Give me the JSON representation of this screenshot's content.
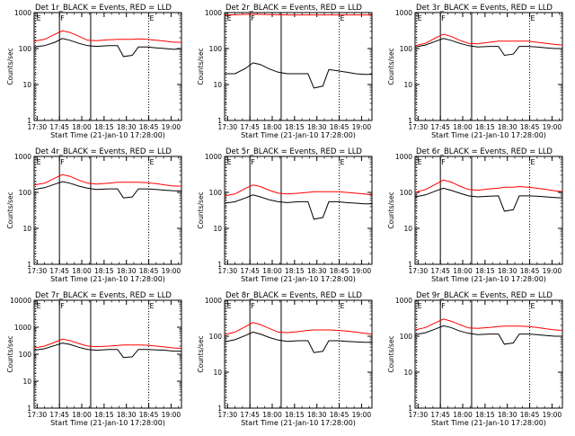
{
  "page": {
    "xlabel": "Start Time (21-Jan-10 17:28:00)",
    "ylabel": "Counts/sec",
    "x_tick_labels": [
      "17:30",
      "17:45",
      "18:00",
      "18:15",
      "18:30",
      "18:45",
      "19:00"
    ],
    "y_tick_labels": [
      "1",
      "10",
      "100",
      "1000"
    ],
    "y_tick_labels_top": [
      "1",
      "10",
      "100",
      "1000",
      "10000"
    ],
    "markers": [
      "E",
      "F",
      "E"
    ],
    "colors": {
      "black_series": "#000000",
      "red_series": "#ff0000",
      "axes": "#000000",
      "background": "#ffffff"
    }
  },
  "chart_data": [
    {
      "type": "line",
      "title": "Det 1r_BLACK = Events, RED = LLD",
      "xlabel": "Start Time (21-Jan-10 17:28:00)",
      "ylabel": "Counts/sec",
      "x_units": "time (HH:MM, 21-Jan-10)",
      "xlim": [
        "17:28",
        "19:07"
      ],
      "ylim": [
        1,
        1000
      ],
      "yscale": "log",
      "vlines_solid": [
        "17:45",
        "18:06"
      ],
      "vlines_dotted": [
        "17:29",
        "18:45",
        "19:07"
      ],
      "x": [
        "17:28",
        "17:35",
        "17:42",
        "17:47",
        "17:52",
        "17:58",
        "18:04",
        "18:10",
        "18:18",
        "18:24",
        "18:28",
        "18:34",
        "18:38",
        "18:44",
        "18:50",
        "18:56",
        "19:02",
        "19:07"
      ],
      "series": [
        {
          "name": "BLACK = Events",
          "color": "#000000",
          "values": [
            110,
            120,
            150,
            190,
            170,
            140,
            120,
            115,
            120,
            120,
            60,
            65,
            110,
            110,
            105,
            100,
            95,
            100
          ]
        },
        {
          "name": "RED = LLD",
          "color": "#ff0000",
          "values": [
            160,
            180,
            250,
            310,
            280,
            220,
            170,
            165,
            175,
            180,
            180,
            180,
            185,
            180,
            170,
            160,
            150,
            150
          ]
        }
      ]
    },
    {
      "type": "line",
      "title": "Det 2r_BLACK = Events, RED = LLD",
      "xlabel": "Start Time (21-Jan-10 17:28:00)",
      "ylabel": "Counts/sec",
      "x_units": "time (HH:MM, 21-Jan-10)",
      "xlim": [
        "17:28",
        "19:07"
      ],
      "ylim": [
        1,
        1000
      ],
      "yscale": "log",
      "vlines_solid": [
        "17:45",
        "18:06"
      ],
      "vlines_dotted": [
        "17:29",
        "18:45",
        "19:07"
      ],
      "x": [
        "17:28",
        "17:35",
        "17:42",
        "17:47",
        "17:52",
        "17:58",
        "18:04",
        "18:10",
        "18:18",
        "18:24",
        "18:28",
        "18:34",
        "18:38",
        "18:44",
        "18:50",
        "18:56",
        "19:02",
        "19:07"
      ],
      "series": [
        {
          "name": "BLACK = Events",
          "color": "#000000",
          "values": [
            20,
            20,
            28,
            40,
            36,
            27,
            22,
            20,
            20,
            20,
            8,
            9,
            26,
            24,
            22,
            20,
            19,
            19
          ]
        },
        {
          "name": "RED = LLD",
          "color": "#ff0000",
          "values": [
            850,
            870,
            890,
            900,
            890,
            880,
            870,
            860,
            860,
            860,
            860,
            860,
            860,
            860,
            860,
            860,
            860,
            860
          ]
        }
      ]
    },
    {
      "type": "line",
      "title": "Det 3r_BLACK = Events, RED = LLD",
      "xlabel": "Start Time (21-Jan-10 17:28:00)",
      "ylabel": "Counts/sec",
      "x_units": "time (HH:MM, 21-Jan-10)",
      "xlim": [
        "17:28",
        "19:07"
      ],
      "ylim": [
        1,
        1000
      ],
      "yscale": "log",
      "vlines_solid": [
        "17:45",
        "18:06"
      ],
      "vlines_dotted": [
        "17:29",
        "18:45",
        "19:07"
      ],
      "x": [
        "17:28",
        "17:35",
        "17:42",
        "17:47",
        "17:52",
        "17:58",
        "18:04",
        "18:10",
        "18:18",
        "18:24",
        "18:28",
        "18:34",
        "18:38",
        "18:44",
        "18:50",
        "18:56",
        "19:02",
        "19:07"
      ],
      "series": [
        {
          "name": "BLACK = Events",
          "color": "#000000",
          "values": [
            110,
            125,
            160,
            190,
            170,
            140,
            120,
            110,
            115,
            115,
            65,
            70,
            115,
            115,
            110,
            105,
            100,
            100
          ]
        },
        {
          "name": "RED = LLD",
          "color": "#ff0000",
          "values": [
            120,
            140,
            200,
            250,
            220,
            170,
            140,
            135,
            150,
            160,
            160,
            160,
            160,
            160,
            150,
            140,
            130,
            125
          ]
        }
      ]
    },
    {
      "type": "line",
      "title": "Det 4r_BLACK = Events, RED = LLD",
      "xlabel": "Start Time (21-Jan-10 17:28:00)",
      "ylabel": "Counts/sec",
      "x_units": "time (HH:MM, 21-Jan-10)",
      "xlim": [
        "17:28",
        "19:07"
      ],
      "ylim": [
        1,
        1000
      ],
      "yscale": "log",
      "vlines_solid": [
        "17:45",
        "18:06"
      ],
      "vlines_dotted": [
        "17:29",
        "18:45",
        "19:07"
      ],
      "x": [
        "17:28",
        "17:35",
        "17:42",
        "17:47",
        "17:52",
        "17:58",
        "18:04",
        "18:10",
        "18:18",
        "18:24",
        "18:28",
        "18:34",
        "18:38",
        "18:44",
        "18:50",
        "18:56",
        "19:02",
        "19:07"
      ],
      "series": [
        {
          "name": "BLACK = Events",
          "color": "#000000",
          "values": [
            120,
            135,
            170,
            200,
            180,
            150,
            130,
            120,
            125,
            125,
            70,
            75,
            125,
            125,
            120,
            115,
            110,
            110
          ]
        },
        {
          "name": "RED = LLD",
          "color": "#ff0000",
          "values": [
            160,
            180,
            250,
            310,
            280,
            220,
            180,
            170,
            180,
            190,
            190,
            190,
            190,
            185,
            175,
            160,
            150,
            150
          ]
        }
      ]
    },
    {
      "type": "line",
      "title": "Det 5r_BLACK = Events, RED = LLD",
      "xlabel": "Start Time (21-Jan-10 17:28:00)",
      "ylabel": "Counts/sec",
      "x_units": "time (HH:MM, 21-Jan-10)",
      "xlim": [
        "17:28",
        "19:07"
      ],
      "ylim": [
        1,
        1000
      ],
      "yscale": "log",
      "vlines_solid": [
        "17:45",
        "18:06"
      ],
      "vlines_dotted": [
        "17:29",
        "18:45",
        "19:07"
      ],
      "x": [
        "17:28",
        "17:35",
        "17:42",
        "17:47",
        "17:52",
        "17:58",
        "18:04",
        "18:10",
        "18:18",
        "18:24",
        "18:28",
        "18:34",
        "18:38",
        "18:44",
        "18:50",
        "18:56",
        "19:02",
        "19:07"
      ],
      "series": [
        {
          "name": "BLACK = Events",
          "color": "#000000",
          "values": [
            50,
            55,
            70,
            85,
            75,
            62,
            55,
            52,
            55,
            55,
            18,
            20,
            55,
            55,
            52,
            50,
            48,
            48
          ]
        },
        {
          "name": "RED = LLD",
          "color": "#ff0000",
          "values": [
            80,
            90,
            130,
            160,
            145,
            115,
            95,
            90,
            95,
            100,
            105,
            105,
            105,
            105,
            100,
            95,
            90,
            85
          ]
        }
      ]
    },
    {
      "type": "line",
      "title": "Det 6r_BLACK = Events, RED = LLD",
      "xlabel": "Start Time (21-Jan-10 17:28:00)",
      "ylabel": "Counts/sec",
      "x_units": "time (HH:MM, 21-Jan-10)",
      "xlim": [
        "17:28",
        "19:07"
      ],
      "ylim": [
        1,
        1000
      ],
      "yscale": "log",
      "vlines_solid": [
        "17:45",
        "18:06"
      ],
      "vlines_dotted": [
        "17:29",
        "18:45",
        "19:07"
      ],
      "x": [
        "17:28",
        "17:35",
        "17:42",
        "17:47",
        "17:52",
        "17:58",
        "18:04",
        "18:10",
        "18:18",
        "18:24",
        "18:28",
        "18:34",
        "18:38",
        "18:44",
        "18:50",
        "18:56",
        "19:02",
        "19:07"
      ],
      "series": [
        {
          "name": "BLACK = Events",
          "color": "#000000",
          "values": [
            75,
            85,
            110,
            130,
            115,
            95,
            80,
            75,
            78,
            80,
            30,
            33,
            80,
            80,
            78,
            75,
            72,
            70
          ]
        },
        {
          "name": "RED = LLD",
          "color": "#ff0000",
          "values": [
            100,
            120,
            170,
            220,
            195,
            150,
            120,
            115,
            125,
            130,
            140,
            140,
            145,
            140,
            130,
            120,
            110,
            105
          ]
        }
      ]
    },
    {
      "type": "line",
      "title": "Det 7r_BLACK = Events, RED = LLD",
      "xlabel": "Start Time (21-Jan-10 17:28:00)",
      "ylabel": "Counts/sec",
      "x_units": "time (HH:MM, 21-Jan-10)",
      "xlim": [
        "17:28",
        "19:07"
      ],
      "ylim": [
        1,
        10000
      ],
      "yscale": "log",
      "vlines_solid": [
        "17:45",
        "18:06"
      ],
      "vlines_dotted": [
        "17:29",
        "18:45",
        "19:07"
      ],
      "x": [
        "17:28",
        "17:35",
        "17:42",
        "17:47",
        "17:52",
        "17:58",
        "18:04",
        "18:10",
        "18:18",
        "18:24",
        "18:28",
        "18:34",
        "18:38",
        "18:44",
        "18:50",
        "18:56",
        "19:02",
        "19:07"
      ],
      "series": [
        {
          "name": "BLACK = Events",
          "color": "#000000",
          "values": [
            140,
            160,
            210,
            260,
            230,
            180,
            150,
            140,
            150,
            150,
            75,
            80,
            150,
            150,
            145,
            140,
            130,
            130
          ]
        },
        {
          "name": "RED = LLD",
          "color": "#ff0000",
          "values": [
            170,
            200,
            280,
            360,
            320,
            250,
            200,
            190,
            200,
            210,
            220,
            220,
            220,
            215,
            200,
            185,
            170,
            165
          ]
        }
      ]
    },
    {
      "type": "line",
      "title": "Det 8r_BLACK = Events, RED = LLD",
      "xlabel": "Start Time (21-Jan-10 17:28:00)",
      "ylabel": "Counts/sec",
      "x_units": "time (HH:MM, 21-Jan-10)",
      "xlim": [
        "17:28",
        "19:07"
      ],
      "ylim": [
        1,
        1000
      ],
      "yscale": "log",
      "vlines_solid": [
        "17:45",
        "18:06"
      ],
      "vlines_dotted": [
        "17:29",
        "18:45",
        "19:07"
      ],
      "x": [
        "17:28",
        "17:35",
        "17:42",
        "17:47",
        "17:52",
        "17:58",
        "18:04",
        "18:10",
        "18:18",
        "18:24",
        "18:28",
        "18:34",
        "18:38",
        "18:44",
        "18:50",
        "18:56",
        "19:02",
        "19:07"
      ],
      "series": [
        {
          "name": "BLACK = Events",
          "color": "#000000",
          "values": [
            70,
            80,
            105,
            130,
            115,
            92,
            78,
            72,
            75,
            75,
            35,
            38,
            75,
            75,
            72,
            70,
            68,
            68
          ]
        },
        {
          "name": "RED = LLD",
          "color": "#ff0000",
          "values": [
            110,
            130,
            185,
            240,
            210,
            165,
            130,
            125,
            135,
            145,
            150,
            150,
            150,
            145,
            140,
            130,
            120,
            115
          ]
        }
      ]
    },
    {
      "type": "line",
      "title": "Det 9r_BLACK = Events, RED = LLD",
      "xlabel": "Start Time (21-Jan-10 17:28:00)",
      "ylabel": "Counts/sec",
      "x_units": "time (HH:MM, 21-Jan-10)",
      "xlim": [
        "17:28",
        "19:07"
      ],
      "ylim": [
        1,
        1000
      ],
      "yscale": "log",
      "vlines_solid": [
        "17:45",
        "18:06"
      ],
      "vlines_dotted": [
        "17:29",
        "18:45",
        "19:07"
      ],
      "x": [
        "17:28",
        "17:35",
        "17:42",
        "17:47",
        "17:52",
        "17:58",
        "18:04",
        "18:10",
        "18:18",
        "18:24",
        "18:28",
        "18:34",
        "18:38",
        "18:44",
        "18:50",
        "18:56",
        "19:02",
        "19:07"
      ],
      "series": [
        {
          "name": "BLACK = Events",
          "color": "#000000",
          "values": [
            110,
            125,
            160,
            195,
            175,
            140,
            120,
            110,
            115,
            115,
            60,
            65,
            115,
            115,
            110,
            105,
            100,
            100
          ]
        },
        {
          "name": "RED = LLD",
          "color": "#ff0000",
          "values": [
            150,
            175,
            240,
            300,
            265,
            210,
            170,
            165,
            175,
            185,
            190,
            190,
            190,
            185,
            175,
            160,
            150,
            145
          ]
        }
      ]
    }
  ]
}
